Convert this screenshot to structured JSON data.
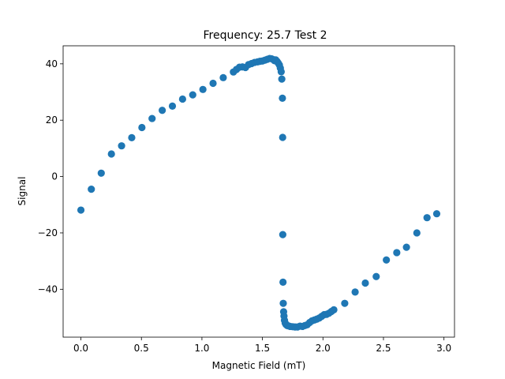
{
  "chart_data": {
    "type": "scatter",
    "title": "Frequency: 25.7 Test 2",
    "xlabel": "Magnetic Field (mT)",
    "ylabel": "Signal",
    "xlim": [
      -0.147,
      3.087
    ],
    "ylim": [
      -57.0,
      46.4
    ],
    "xticks": [
      0.0,
      0.5,
      1.0,
      1.5,
      2.0,
      2.5,
      3.0
    ],
    "xtick_labels": [
      "0.0",
      "0.5",
      "1.0",
      "1.5",
      "2.0",
      "2.5",
      "3.0"
    ],
    "yticks": [
      -40,
      -20,
      0,
      20,
      40
    ],
    "ytick_labels": [
      "−40",
      "−20",
      "0",
      "20",
      "40"
    ],
    "grid": false,
    "marker_color": "#1f77b4",
    "points": [
      [
        0.0,
        -11.9
      ],
      [
        0.086,
        -4.5
      ],
      [
        0.168,
        1.2
      ],
      [
        0.252,
        8.0
      ],
      [
        0.336,
        10.9
      ],
      [
        0.42,
        13.8
      ],
      [
        0.504,
        17.4
      ],
      [
        0.588,
        20.6
      ],
      [
        0.672,
        23.5
      ],
      [
        0.756,
        25.0
      ],
      [
        0.84,
        27.5
      ],
      [
        0.924,
        29.0
      ],
      [
        1.008,
        30.9
      ],
      [
        1.092,
        33.1
      ],
      [
        1.176,
        35.1
      ],
      [
        1.26,
        37.1
      ],
      [
        1.285,
        38.0
      ],
      [
        1.31,
        38.8
      ],
      [
        1.335,
        38.9
      ],
      [
        1.36,
        38.7
      ],
      [
        1.385,
        39.7
      ],
      [
        1.41,
        40.1
      ],
      [
        1.435,
        40.5
      ],
      [
        1.46,
        40.7
      ],
      [
        1.48,
        40.9
      ],
      [
        1.5,
        41.0
      ],
      [
        1.52,
        41.3
      ],
      [
        1.54,
        41.6
      ],
      [
        1.56,
        41.9
      ],
      [
        1.575,
        41.8
      ],
      [
        1.59,
        41.5
      ],
      [
        1.6,
        41.1
      ],
      [
        1.61,
        41.4
      ],
      [
        1.62,
        40.9
      ],
      [
        1.63,
        40.3
      ],
      [
        1.64,
        39.6
      ],
      [
        1.648,
        38.5
      ],
      [
        1.655,
        37.2
      ],
      [
        1.66,
        34.6
      ],
      [
        1.665,
        27.8
      ],
      [
        1.667,
        13.9
      ],
      [
        1.668,
        -20.6
      ],
      [
        1.67,
        -37.5
      ],
      [
        1.672,
        -45.0
      ],
      [
        1.675,
        -48.0
      ],
      [
        1.678,
        -49.5
      ],
      [
        1.682,
        -51.0
      ],
      [
        1.688,
        -52.0
      ],
      [
        1.695,
        -52.5
      ],
      [
        1.705,
        -52.9
      ],
      [
        1.715,
        -53.0
      ],
      [
        1.73,
        -53.2
      ],
      [
        1.75,
        -53.3
      ],
      [
        1.77,
        -53.4
      ],
      [
        1.79,
        -53.4
      ],
      [
        1.81,
        -53.1
      ],
      [
        1.83,
        -53.2
      ],
      [
        1.85,
        -52.9
      ],
      [
        1.87,
        -52.6
      ],
      [
        1.89,
        -51.8
      ],
      [
        1.91,
        -51.2
      ],
      [
        1.93,
        -50.9
      ],
      [
        1.95,
        -50.6
      ],
      [
        1.97,
        -50.2
      ],
      [
        1.99,
        -49.6
      ],
      [
        2.01,
        -49.0
      ],
      [
        2.03,
        -48.9
      ],
      [
        2.05,
        -48.5
      ],
      [
        2.07,
        -47.9
      ],
      [
        2.09,
        -47.3
      ],
      [
        2.18,
        -45.0
      ],
      [
        2.266,
        -41.0
      ],
      [
        2.35,
        -37.8
      ],
      [
        2.44,
        -35.5
      ],
      [
        2.524,
        -29.6
      ],
      [
        2.61,
        -27.0
      ],
      [
        2.69,
        -25.1
      ],
      [
        2.776,
        -20.0
      ],
      [
        2.86,
        -14.6
      ],
      [
        2.94,
        -13.2
      ]
    ]
  }
}
